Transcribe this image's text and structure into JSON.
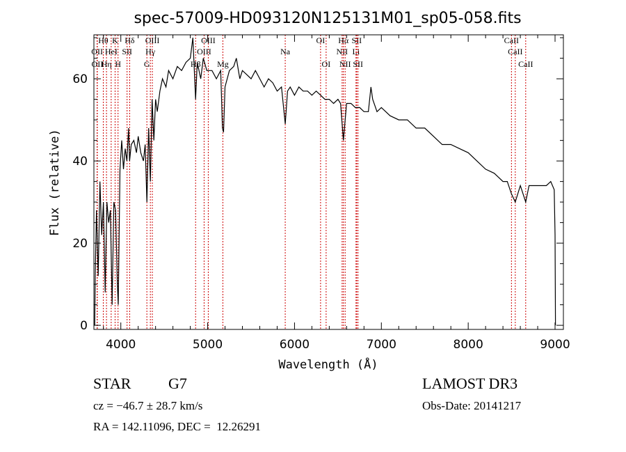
{
  "chart_data": {
    "type": "line",
    "title": "spec-57009-HD093120N125131M01_sp05-058.fits",
    "xlabel": "Wavelength (Å)",
    "ylabel": "Flux (relative)",
    "xlim": [
      3690,
      9096
    ],
    "ylim": [
      -1,
      70.7
    ],
    "xticks": [
      4000,
      5000,
      6000,
      7000,
      8000,
      9000
    ],
    "yticks": [
      0,
      20,
      40,
      60
    ],
    "grid": false,
    "line_color": "#000000",
    "marker_color": "#cc0000",
    "series": [
      {
        "name": "spectrum",
        "points": [
          [
            3700,
            0
          ],
          [
            3705,
            12
          ],
          [
            3720,
            28
          ],
          [
            3740,
            12
          ],
          [
            3760,
            35
          ],
          [
            3780,
            22
          ],
          [
            3800,
            30
          ],
          [
            3820,
            8
          ],
          [
            3840,
            30
          ],
          [
            3860,
            25
          ],
          [
            3880,
            28
          ],
          [
            3900,
            5
          ],
          [
            3920,
            30
          ],
          [
            3940,
            28
          ],
          [
            3960,
            10
          ],
          [
            3970,
            5
          ],
          [
            3990,
            38
          ],
          [
            4010,
            45
          ],
          [
            4030,
            38
          ],
          [
            4050,
            43
          ],
          [
            4070,
            40
          ],
          [
            4090,
            48
          ],
          [
            4101,
            40
          ],
          [
            4120,
            44
          ],
          [
            4150,
            45
          ],
          [
            4180,
            42
          ],
          [
            4200,
            46
          ],
          [
            4230,
            42
          ],
          [
            4260,
            40
          ],
          [
            4280,
            44
          ],
          [
            4300,
            30
          ],
          [
            4320,
            48
          ],
          [
            4340,
            35
          ],
          [
            4360,
            55
          ],
          [
            4380,
            45
          ],
          [
            4400,
            55
          ],
          [
            4420,
            52
          ],
          [
            4450,
            57
          ],
          [
            4480,
            60
          ],
          [
            4520,
            58
          ],
          [
            4550,
            62
          ],
          [
            4600,
            60
          ],
          [
            4650,
            63
          ],
          [
            4700,
            62
          ],
          [
            4750,
            64
          ],
          [
            4800,
            65
          ],
          [
            4830,
            70
          ],
          [
            4861,
            55
          ],
          [
            4880,
            64
          ],
          [
            4920,
            60
          ],
          [
            4950,
            65
          ],
          [
            4990,
            62
          ],
          [
            5050,
            62
          ],
          [
            5100,
            60
          ],
          [
            5150,
            62
          ],
          [
            5170,
            48
          ],
          [
            5183,
            47
          ],
          [
            5200,
            58
          ],
          [
            5250,
            62
          ],
          [
            5300,
            63
          ],
          [
            5330,
            65
          ],
          [
            5370,
            60
          ],
          [
            5400,
            62
          ],
          [
            5450,
            61
          ],
          [
            5500,
            60
          ],
          [
            5550,
            62
          ],
          [
            5600,
            60
          ],
          [
            5650,
            58
          ],
          [
            5700,
            60
          ],
          [
            5750,
            59
          ],
          [
            5800,
            57
          ],
          [
            5850,
            58
          ],
          [
            5893,
            49
          ],
          [
            5920,
            57
          ],
          [
            5950,
            58
          ],
          [
            6000,
            56
          ],
          [
            6050,
            58
          ],
          [
            6100,
            57
          ],
          [
            6150,
            57
          ],
          [
            6200,
            56
          ],
          [
            6250,
            57
          ],
          [
            6300,
            56
          ],
          [
            6350,
            55
          ],
          [
            6400,
            55
          ],
          [
            6450,
            54
          ],
          [
            6500,
            55
          ],
          [
            6530,
            54
          ],
          [
            6563,
            45
          ],
          [
            6600,
            54
          ],
          [
            6650,
            54
          ],
          [
            6700,
            53
          ],
          [
            6750,
            53
          ],
          [
            6800,
            52
          ],
          [
            6850,
            52
          ],
          [
            6880,
            58
          ],
          [
            6900,
            55
          ],
          [
            6950,
            52
          ],
          [
            7000,
            53
          ],
          [
            7100,
            51
          ],
          [
            7200,
            50
          ],
          [
            7300,
            50
          ],
          [
            7400,
            48
          ],
          [
            7500,
            48
          ],
          [
            7600,
            46
          ],
          [
            7700,
            44
          ],
          [
            7800,
            44
          ],
          [
            7900,
            43
          ],
          [
            8000,
            42
          ],
          [
            8100,
            40
          ],
          [
            8200,
            38
          ],
          [
            8300,
            37
          ],
          [
            8400,
            35
          ],
          [
            8450,
            35
          ],
          [
            8498,
            32
          ],
          [
            8542,
            30
          ],
          [
            8600,
            34
          ],
          [
            8662,
            30
          ],
          [
            8700,
            34
          ],
          [
            8800,
            34
          ],
          [
            8900,
            34
          ],
          [
            8950,
            35
          ],
          [
            8990,
            33
          ],
          [
            9000,
            22
          ],
          [
            9005,
            0
          ]
        ]
      }
    ],
    "line_markers": [
      {
        "label": "OII",
        "wave": 3727,
        "row": 2
      },
      {
        "label": "OII",
        "wave": 3729,
        "row": 3
      },
      {
        "label": "Hθ",
        "wave": 3798,
        "row": 1
      },
      {
        "label": "Hη",
        "wave": 3835,
        "row": 3
      },
      {
        "label": "HeI",
        "wave": 3889,
        "row": 2
      },
      {
        "label": "K",
        "wave": 3934,
        "row": 1
      },
      {
        "label": "H",
        "wave": 3968,
        "row": 3
      },
      {
        "label": "SII",
        "wave": 4072,
        "row": 2
      },
      {
        "label": "Hδ",
        "wave": 4102,
        "row": 1
      },
      {
        "label": "G",
        "wave": 4300,
        "row": 3
      },
      {
        "label": "Hγ",
        "wave": 4340,
        "row": 2
      },
      {
        "label": "OIII",
        "wave": 4363,
        "row": 1
      },
      {
        "label": "Hβ",
        "wave": 4861,
        "row": 3
      },
      {
        "label": "OIII",
        "wave": 4959,
        "row": 2
      },
      {
        "label": "OIII",
        "wave": 5007,
        "row": 1
      },
      {
        "label": "Mg",
        "wave": 5175,
        "row": 3
      },
      {
        "label": "Na",
        "wave": 5893,
        "row": 2
      },
      {
        "label": "OI",
        "wave": 6300,
        "row": 1
      },
      {
        "label": "OI",
        "wave": 6364,
        "row": 3
      },
      {
        "label": "NII",
        "wave": 6548,
        "row": 2
      },
      {
        "label": "Hα",
        "wave": 6563,
        "row": 1
      },
      {
        "label": "NII",
        "wave": 6583,
        "row": 3
      },
      {
        "label": "Li",
        "wave": 6708,
        "row": 2
      },
      {
        "label": "SII",
        "wave": 6716,
        "row": 1
      },
      {
        "label": "SII",
        "wave": 6731,
        "row": 3
      },
      {
        "label": "CaII",
        "wave": 8498,
        "row": 1
      },
      {
        "label": "CaII",
        "wave": 8542,
        "row": 2
      },
      {
        "label": "CaII",
        "wave": 8662,
        "row": 3
      }
    ]
  },
  "info": {
    "class": "STAR",
    "subclass": "G7",
    "survey": "LAMOST DR3",
    "cz": "cz = −46.7 ± 28.7 km/s",
    "obs_date": "Obs-Date: 20141217",
    "coords": "RA = 142.11096, DEC =  12.26291"
  }
}
